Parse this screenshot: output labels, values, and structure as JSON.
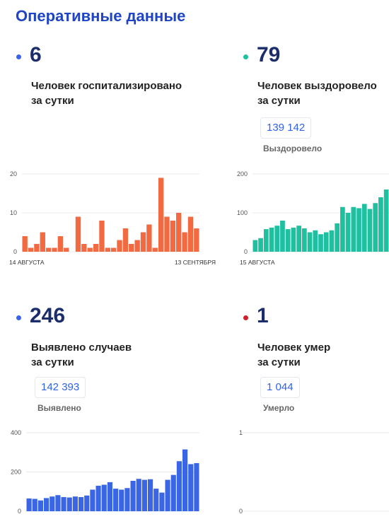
{
  "page": {
    "title": "Оперативные данные"
  },
  "colors": {
    "hospitalized": "#3a66e6",
    "recovered": "#1fc0a0",
    "cases": "#3a66e6",
    "deaths": "#d0202a"
  },
  "hospitalized": {
    "count": "6",
    "caption_line1": "Человек госпитализировано",
    "caption_line2": "за сутки"
  },
  "recovered": {
    "count": "79",
    "caption_line1": "Человек выздоровело",
    "caption_line2": "за сутки",
    "total": "139 142",
    "total_label": "Выздоровело"
  },
  "cases": {
    "count": "246",
    "caption_line1": "Выявлено случаев",
    "caption_line2": "за сутки",
    "total": "142 393",
    "total_label": "Выявлено"
  },
  "deaths": {
    "count": "1",
    "caption_line1": "Человек умер",
    "caption_line2": "за сутки",
    "total": "1 044",
    "total_label": "Умерло"
  },
  "chart_data": [
    {
      "type": "bar",
      "series_key": "hospitalized",
      "color": "#f26a42",
      "ylim": [
        0,
        20
      ],
      "yticks": [
        "0",
        "10",
        "20"
      ],
      "x_start_label": "14 АВГУСТА",
      "x_end_label": "13 СЕНТЯБРЯ",
      "values": [
        4,
        1,
        2,
        5,
        1,
        1,
        4,
        1,
        0,
        9,
        2,
        1,
        2,
        8,
        1,
        1,
        3,
        6,
        2,
        3,
        5,
        7,
        1,
        19,
        9,
        8,
        10,
        5,
        9,
        6
      ]
    },
    {
      "type": "bar",
      "series_key": "recovered",
      "color": "#1fc0a0",
      "ylim": [
        0,
        200
      ],
      "yticks": [
        "0",
        "100",
        "200"
      ],
      "x_start_label": "15 АВГУСТА",
      "x_end_label": "",
      "values": [
        30,
        35,
        58,
        62,
        67,
        80,
        58,
        62,
        67,
        60,
        50,
        55,
        45,
        50,
        55,
        73,
        115,
        100,
        115,
        112,
        123,
        110,
        125,
        140,
        160
      ]
    },
    {
      "type": "bar",
      "series_key": "cases",
      "color": "#3a66e6",
      "ylim": [
        0,
        400
      ],
      "yticks": [
        "0",
        "200",
        "400"
      ],
      "values": [
        65,
        63,
        55,
        67,
        75,
        82,
        72,
        70,
        75,
        72,
        80,
        110,
        130,
        135,
        148,
        115,
        110,
        118,
        155,
        165,
        160,
        163,
        115,
        95,
        160,
        185,
        255,
        315,
        240,
        245
      ]
    },
    {
      "type": "bar",
      "series_key": "deaths",
      "color": "#d0202a",
      "ylim": [
        0,
        1
      ],
      "yticks": [
        "0",
        "1"
      ],
      "values": []
    }
  ]
}
